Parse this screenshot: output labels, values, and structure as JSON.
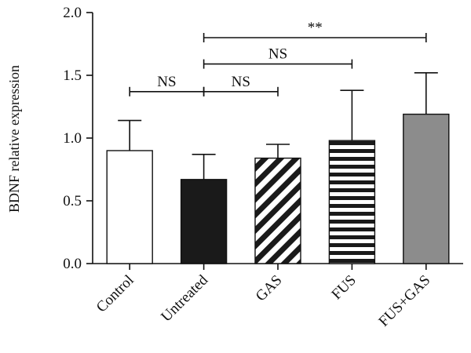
{
  "chart_data": {
    "type": "bar",
    "title": "",
    "xlabel": "",
    "ylabel": "BDNF relative expression",
    "ylim": [
      0,
      2.0
    ],
    "yticks": [
      "0.0",
      "0.5",
      "1.0",
      "1.5",
      "2.0"
    ],
    "grid": false,
    "categories": [
      "Control",
      "Untreated",
      "GAS",
      "FUS",
      "FUS+GAS"
    ],
    "values": [
      0.9,
      0.67,
      0.84,
      0.98,
      1.19
    ],
    "error_upper": [
      1.14,
      0.87,
      0.95,
      1.38,
      1.52
    ],
    "bar_styles": [
      {
        "fill": "#ffffff",
        "pattern": "none"
      },
      {
        "fill": "#1a1a1a",
        "pattern": "none"
      },
      {
        "fill": "#ffffff",
        "pattern": "diagonal-stripes"
      },
      {
        "fill": "#ffffff",
        "pattern": "horizontal-stripes"
      },
      {
        "fill": "#8c8c8c",
        "pattern": "none"
      }
    ],
    "significance": [
      {
        "from": 0,
        "to": 1,
        "label": "NS",
        "y": 1.37
      },
      {
        "from": 1,
        "to": 2,
        "label": "NS",
        "y": 1.37
      },
      {
        "from": 1,
        "to": 3,
        "label": "NS",
        "y": 1.59
      },
      {
        "from": 1,
        "to": 4,
        "label": "**",
        "y": 1.8
      }
    ]
  }
}
